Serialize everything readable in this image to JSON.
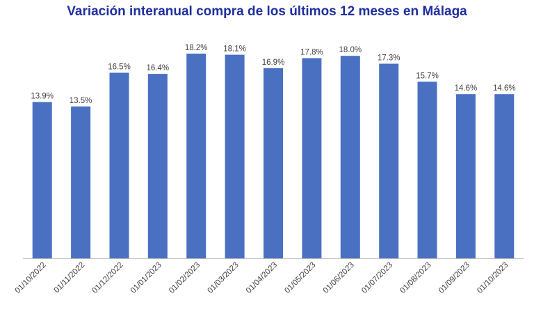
{
  "chart_data": {
    "type": "bar",
    "title": "Variación interanual compra de los últimos 12 meses en Málaga",
    "categories": [
      "01/10/2022",
      "01/11/2022",
      "01/12/2022",
      "01/01/2023",
      "01/02/2023",
      "01/03/2023",
      "01/04/2023",
      "01/05/2023",
      "01/06/2023",
      "01/07/2023",
      "01/08/2023",
      "01/09/2023",
      "01/10/2023"
    ],
    "values": [
      13.9,
      13.5,
      16.5,
      16.4,
      18.2,
      18.1,
      16.9,
      17.8,
      18.0,
      17.3,
      15.7,
      14.6,
      14.6
    ],
    "data_labels": [
      "13.9%",
      "13.5%",
      "16.5%",
      "16.4%",
      "18.2%",
      "18.1%",
      "16.9%",
      "17.8%",
      "18.0%",
      "17.3%",
      "15.7%",
      "14.6%",
      "14.6%"
    ],
    "xlabel": "",
    "ylabel": "",
    "ylim": [
      0,
      18.2
    ],
    "grid": false,
    "legend": "none",
    "bar_color": "#4a70c2",
    "title_color": "#1f2f9e"
  }
}
